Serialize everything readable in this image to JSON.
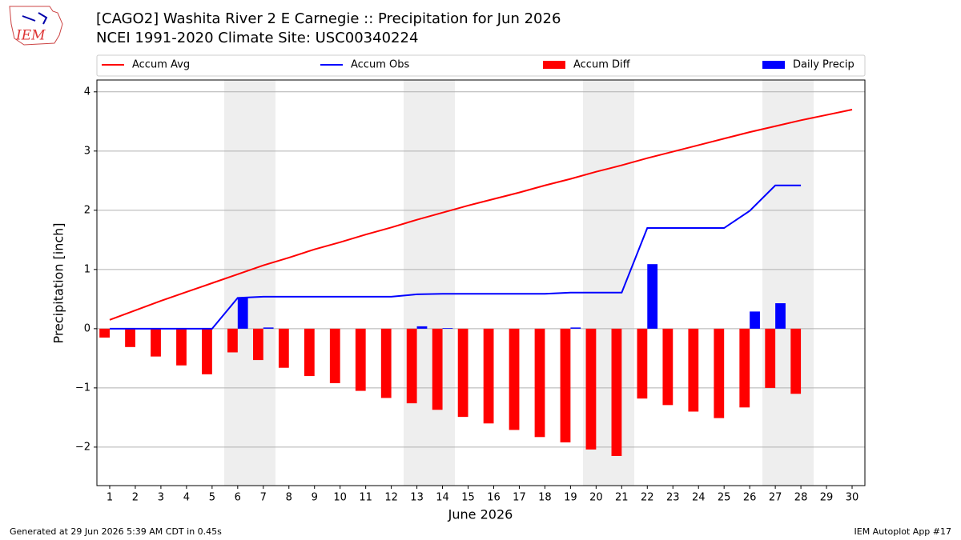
{
  "chart_data": {
    "type": "line_bar",
    "title": "[CAGO2] Washita River 2 E Carnegie :: Precipitation for Jun 2026",
    "subtitle": "NCEI 1991-2020 Climate Site: USC00340224",
    "x_label": "June 2026",
    "y_label": "Precipitation [inch]",
    "logo_text": "IEM",
    "footer_left": "Generated at 29 Jun 2026 5:39 AM CDT in 0.45s",
    "footer_right": "IEM Autoplot App #17",
    "x": [
      1,
      2,
      3,
      4,
      5,
      6,
      7,
      8,
      9,
      10,
      11,
      12,
      13,
      14,
      15,
      16,
      17,
      18,
      19,
      20,
      21,
      22,
      23,
      24,
      25,
      26,
      27,
      28,
      29,
      30
    ],
    "xlim": [
      0.5,
      30.5
    ],
    "xticks": [
      1,
      2,
      3,
      4,
      5,
      6,
      7,
      8,
      9,
      10,
      11,
      12,
      13,
      14,
      15,
      16,
      17,
      18,
      19,
      20,
      21,
      22,
      23,
      24,
      25,
      26,
      27,
      28,
      29,
      30
    ],
    "ylim": [
      -2.65,
      4.2
    ],
    "yticks": [
      {
        "value": -2,
        "label": "−2"
      },
      {
        "value": -1,
        "label": "−1"
      },
      0,
      1,
      2,
      3,
      4
    ],
    "grid": true,
    "series": [
      {
        "name": "Accum Avg",
        "type": "line",
        "color": "#ff0000",
        "values": [
          0.15,
          0.31,
          0.47,
          0.62,
          0.77,
          0.92,
          1.07,
          1.2,
          1.34,
          1.46,
          1.59,
          1.71,
          1.84,
          1.96,
          2.08,
          2.19,
          2.3,
          2.42,
          2.53,
          2.65,
          2.76,
          2.88,
          2.99,
          3.1,
          3.21,
          3.32,
          3.42,
          3.52,
          3.61,
          3.7
        ]
      },
      {
        "name": "Accum Obs",
        "type": "line",
        "color": "#0000ff",
        "values": [
          0,
          0,
          0,
          0,
          0,
          0.52,
          0.54,
          0.54,
          0.54,
          0.54,
          0.54,
          0.54,
          0.58,
          0.59,
          0.59,
          0.59,
          0.59,
          0.59,
          0.61,
          0.61,
          0.61,
          1.7,
          1.7,
          1.7,
          1.7,
          1.99,
          2.42,
          2.42,
          null,
          null
        ]
      },
      {
        "name": "Accum Diff",
        "type": "bar",
        "color": "#ff0000",
        "values": [
          -0.15,
          -0.31,
          -0.47,
          -0.62,
          -0.77,
          -0.4,
          -0.53,
          -0.66,
          -0.8,
          -0.92,
          -1.05,
          -1.17,
          -1.26,
          -1.37,
          -1.49,
          -1.6,
          -1.71,
          -1.83,
          -1.92,
          -2.04,
          -2.15,
          -1.18,
          -1.29,
          -1.4,
          -1.51,
          -1.33,
          -1.0,
          -1.1,
          null,
          null
        ]
      },
      {
        "name": "Daily Precip",
        "type": "bar",
        "color": "#0000ff",
        "values": [
          0,
          0,
          0,
          0,
          0,
          0.52,
          0.02,
          0,
          0,
          0,
          0,
          0,
          0.04,
          0.01,
          0,
          0,
          0,
          0,
          0.02,
          0,
          0,
          1.09,
          0,
          0,
          0,
          0.29,
          0.43,
          0,
          null,
          null
        ]
      }
    ]
  }
}
